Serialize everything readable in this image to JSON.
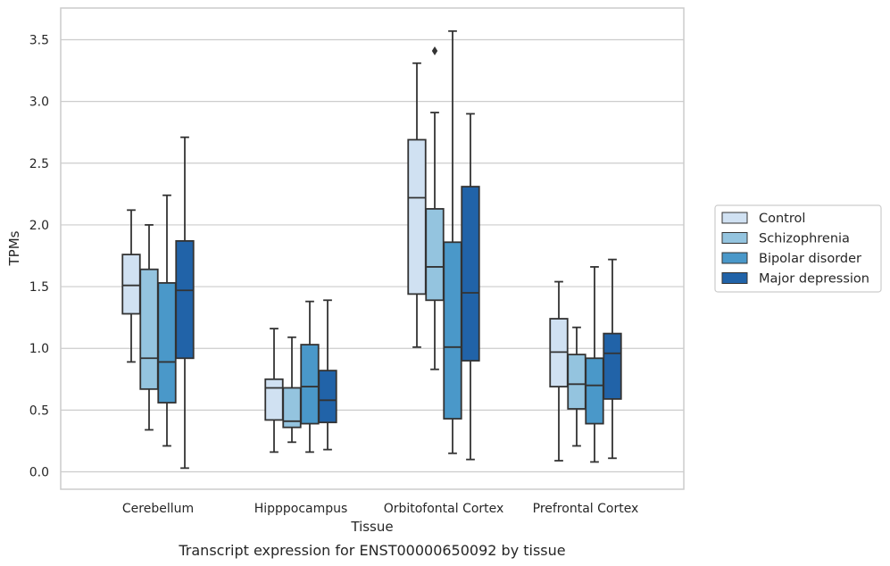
{
  "caption": "Transcript expression for ENST00000650092 by tissue",
  "chart_data": {
    "type": "box",
    "xlabel": "Tissue",
    "ylabel": "TPMs",
    "ylim": [
      -0.14,
      3.75
    ],
    "yticks": [
      0.0,
      0.5,
      1.0,
      1.5,
      2.0,
      2.5,
      3.0,
      3.5
    ],
    "ytick_labels": [
      "0.0",
      "0.5",
      "1.0",
      "1.5",
      "2.0",
      "2.5",
      "3.0",
      "3.5"
    ],
    "grid": "horizontal",
    "legend_position": "right",
    "categories": [
      "Cerebellum",
      "Hipppocampus",
      "Orbitofontal Cortex",
      "Prefrontal Cortex"
    ],
    "series": [
      {
        "name": "Control",
        "color": "#d0e1f2",
        "boxes": [
          {
            "whislo": 0.89,
            "q1": 1.28,
            "med": 1.51,
            "q3": 1.76,
            "whishi": 2.12,
            "fliers": []
          },
          {
            "whislo": 0.16,
            "q1": 0.42,
            "med": 0.68,
            "q3": 0.75,
            "whishi": 1.16,
            "fliers": []
          },
          {
            "whislo": 1.01,
            "q1": 1.44,
            "med": 2.22,
            "q3": 2.69,
            "whishi": 3.31,
            "fliers": []
          },
          {
            "whislo": 0.09,
            "q1": 0.69,
            "med": 0.97,
            "q3": 1.24,
            "whishi": 1.54,
            "fliers": []
          }
        ]
      },
      {
        "name": "Schizophrenia",
        "color": "#94c4df",
        "boxes": [
          {
            "whislo": 0.34,
            "q1": 0.67,
            "med": 0.92,
            "q3": 1.64,
            "whishi": 2.0,
            "fliers": []
          },
          {
            "whislo": 0.24,
            "q1": 0.36,
            "med": 0.41,
            "q3": 0.68,
            "whishi": 1.09,
            "fliers": []
          },
          {
            "whislo": 0.83,
            "q1": 1.39,
            "med": 1.66,
            "q3": 2.13,
            "whishi": 2.91,
            "fliers": [
              3.41
            ]
          },
          {
            "whislo": 0.21,
            "q1": 0.51,
            "med": 0.71,
            "q3": 0.95,
            "whishi": 1.17,
            "fliers": []
          }
        ]
      },
      {
        "name": "Bipolar disorder",
        "color": "#4a98c9",
        "boxes": [
          {
            "whislo": 0.21,
            "q1": 0.56,
            "med": 0.89,
            "q3": 1.53,
            "whishi": 2.24,
            "fliers": []
          },
          {
            "whislo": 0.16,
            "q1": 0.39,
            "med": 0.69,
            "q3": 1.03,
            "whishi": 1.38,
            "fliers": []
          },
          {
            "whislo": 0.15,
            "q1": 0.43,
            "med": 1.01,
            "q3": 1.86,
            "whishi": 3.57,
            "fliers": []
          },
          {
            "whislo": 0.08,
            "q1": 0.39,
            "med": 0.7,
            "q3": 0.92,
            "whishi": 1.66,
            "fliers": []
          }
        ]
      },
      {
        "name": "Major depression",
        "color": "#2163a8",
        "boxes": [
          {
            "whislo": 0.03,
            "q1": 0.92,
            "med": 1.47,
            "q3": 1.87,
            "whishi": 2.71,
            "fliers": []
          },
          {
            "whislo": 0.18,
            "q1": 0.4,
            "med": 0.58,
            "q3": 0.82,
            "whishi": 1.39,
            "fliers": []
          },
          {
            "whislo": 0.1,
            "q1": 0.9,
            "med": 1.45,
            "q3": 2.31,
            "whishi": 2.9,
            "fliers": []
          },
          {
            "whislo": 0.11,
            "q1": 0.59,
            "med": 0.96,
            "q3": 1.12,
            "whishi": 1.72,
            "fliers": []
          }
        ]
      }
    ]
  },
  "colors": {
    "grid": "#cccccc",
    "frame": "#cccccc",
    "box_edge": "#333333",
    "legend_frame": "#cccccc"
  }
}
